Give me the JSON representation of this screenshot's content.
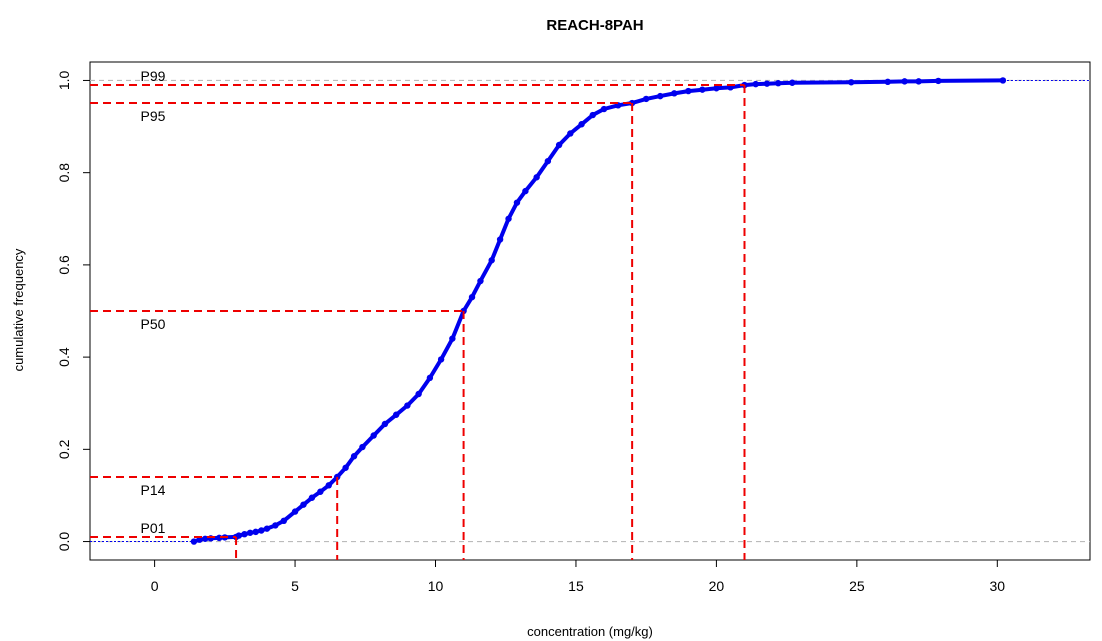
{
  "chart_data": {
    "type": "line",
    "title": "REACH-8PAH",
    "xlabel": "concentration (mg/kg)",
    "ylabel": "cumulative frequency",
    "xlim": [
      -2.3,
      33.3
    ],
    "ylim": [
      -0.04,
      1.04
    ],
    "x_ticks": [
      "0",
      "5",
      "10",
      "15",
      "20",
      "25",
      "30"
    ],
    "y_ticks": [
      "0.0",
      "0.2",
      "0.4",
      "0.6",
      "0.8",
      "1.0"
    ],
    "grid": false,
    "reference_lines": [
      0,
      1
    ],
    "series": [
      {
        "color": "#0000ee",
        "points": [
          [
            1.4,
            0.0
          ],
          [
            1.6,
            0.004
          ],
          [
            1.8,
            0.006
          ],
          [
            2.0,
            0.007
          ],
          [
            2.3,
            0.008
          ],
          [
            2.5,
            0.009
          ],
          [
            2.9,
            0.01
          ],
          [
            3.0,
            0.013
          ],
          [
            3.2,
            0.016
          ],
          [
            3.4,
            0.019
          ],
          [
            3.6,
            0.021
          ],
          [
            3.8,
            0.024
          ],
          [
            4.0,
            0.028
          ],
          [
            4.3,
            0.035
          ],
          [
            4.6,
            0.045
          ],
          [
            5.0,
            0.065
          ],
          [
            5.3,
            0.08
          ],
          [
            5.6,
            0.095
          ],
          [
            5.9,
            0.108
          ],
          [
            6.2,
            0.122
          ],
          [
            6.5,
            0.14
          ],
          [
            6.8,
            0.16
          ],
          [
            7.1,
            0.185
          ],
          [
            7.4,
            0.205
          ],
          [
            7.8,
            0.23
          ],
          [
            8.2,
            0.255
          ],
          [
            8.6,
            0.275
          ],
          [
            9.0,
            0.295
          ],
          [
            9.4,
            0.32
          ],
          [
            9.8,
            0.355
          ],
          [
            10.2,
            0.395
          ],
          [
            10.6,
            0.44
          ],
          [
            11.0,
            0.5
          ],
          [
            11.3,
            0.53
          ],
          [
            11.6,
            0.565
          ],
          [
            12.0,
            0.61
          ],
          [
            12.3,
            0.655
          ],
          [
            12.6,
            0.7
          ],
          [
            12.9,
            0.735
          ],
          [
            13.2,
            0.76
          ],
          [
            13.6,
            0.79
          ],
          [
            14.0,
            0.825
          ],
          [
            14.4,
            0.86
          ],
          [
            14.8,
            0.885
          ],
          [
            15.2,
            0.905
          ],
          [
            15.6,
            0.925
          ],
          [
            16.0,
            0.938
          ],
          [
            16.5,
            0.946
          ],
          [
            17.0,
            0.951
          ],
          [
            17.5,
            0.96
          ],
          [
            18.0,
            0.966
          ],
          [
            18.5,
            0.972
          ],
          [
            19.0,
            0.977
          ],
          [
            19.5,
            0.98
          ],
          [
            20.0,
            0.983
          ],
          [
            20.5,
            0.985
          ],
          [
            21.0,
            0.99
          ],
          [
            21.4,
            0.992
          ],
          [
            21.8,
            0.993
          ],
          [
            22.2,
            0.994
          ],
          [
            22.7,
            0.995
          ],
          [
            24.8,
            0.996
          ],
          [
            26.1,
            0.997
          ],
          [
            26.7,
            0.998
          ],
          [
            27.2,
            0.998
          ],
          [
            27.9,
            0.999
          ],
          [
            30.2,
            1.0
          ]
        ]
      }
    ],
    "percentiles": [
      {
        "label": "P01",
        "x": 2.9,
        "y": 0.01
      },
      {
        "label": "P14",
        "x": 6.5,
        "y": 0.14
      },
      {
        "label": "P50",
        "x": 11.0,
        "y": 0.5
      },
      {
        "label": "P95",
        "x": 17.0,
        "y": 0.951
      },
      {
        "label": "P99",
        "x": 21.0,
        "y": 0.99
      }
    ],
    "colors": {
      "series": "#0000ee",
      "percentile_lines": "#ee0000",
      "reference_lines": "#bbbbbb"
    }
  }
}
